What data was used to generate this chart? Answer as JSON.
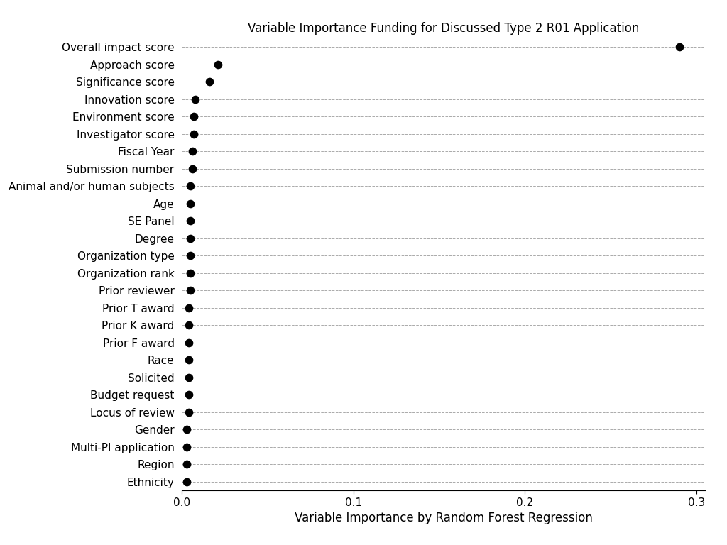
{
  "title": "Variable Importance Funding for Discussed Type 2 R01 Application",
  "xlabel": "Variable Importance by Random Forest Regression",
  "categories": [
    "Overall impact score",
    "Approach score",
    "Significance score",
    "Innovation score",
    "Environment score",
    "Investigator score",
    "Fiscal Year",
    "Submission number",
    "Animal and/or human subjects",
    "Age",
    "SE Panel",
    "Degree",
    "Organization type",
    "Organization rank",
    "Prior reviewer",
    "Prior T award",
    "Prior K award",
    "Prior F award",
    "Race",
    "Solicited",
    "Budget request",
    "Locus of review",
    "Gender",
    "Multi-PI application",
    "Region",
    "Ethnicity"
  ],
  "values": [
    0.29,
    0.021,
    0.016,
    0.008,
    0.007,
    0.007,
    0.006,
    0.006,
    0.005,
    0.005,
    0.005,
    0.005,
    0.005,
    0.005,
    0.005,
    0.004,
    0.004,
    0.004,
    0.004,
    0.004,
    0.004,
    0.004,
    0.003,
    0.003,
    0.003,
    0.003
  ],
  "dot_color": "#000000",
  "dot_size": 55,
  "grid_color": "#aaaaaa",
  "grid_linestyle": "--",
  "grid_linewidth": 0.7,
  "background_color": "#ffffff",
  "xlim": [
    0.0,
    0.305
  ],
  "title_fontsize": 12,
  "label_fontsize": 12,
  "ytick_fontsize": 11,
  "xtick_fontsize": 11
}
